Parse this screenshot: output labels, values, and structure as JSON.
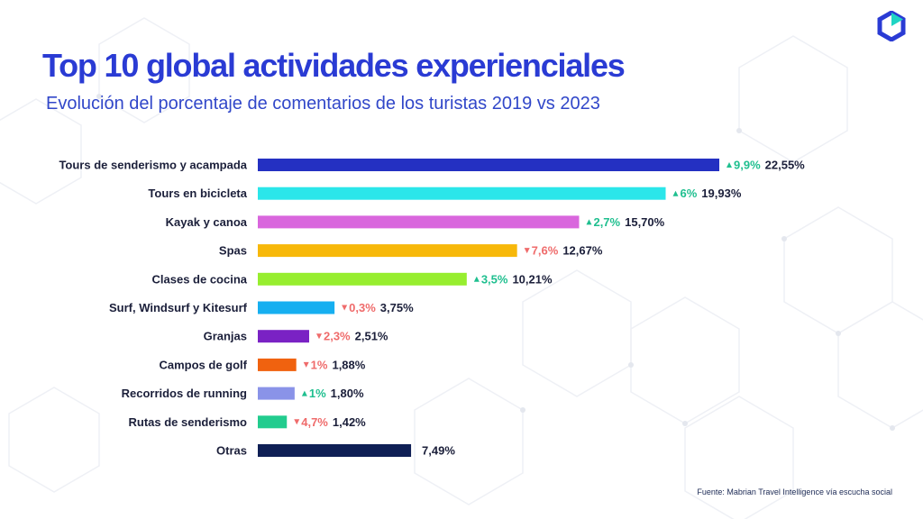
{
  "header": {
    "title": "Top 10 global actividades experienciales",
    "subtitle": "Evolución del porcentaje de comentarios de los turistas 2019 vs 2023"
  },
  "footer": {
    "source": "Fuente:  Mabrian Travel Intelligence  vía escucha social"
  },
  "icons": {
    "logo": "hexagon-logo-icon"
  },
  "colors": {
    "title": "#2a3bd4",
    "up": "#1fbf8f",
    "down": "#ef6b6b",
    "label": "#1b1f3a"
  },
  "chart_data": {
    "type": "bar",
    "orientation": "horizontal",
    "title": "Top 10 global actividades experienciales",
    "subtitle": "Evolución del porcentaje de comentarios de los turistas 2019 vs 2023",
    "xlabel": "",
    "ylabel": "",
    "xlim": [
      0,
      22.55
    ],
    "grid": false,
    "legend": "none",
    "categories": [
      "Tours de senderismo y acampada",
      "Tours en bicicleta",
      "Kayak y canoa",
      "Spas",
      "Clases de cocina",
      "Surf, Windsurf y Kitesurf",
      "Granjas",
      "Campos de golf",
      "Recorridos de running",
      "Rutas de senderismo",
      "Otras"
    ],
    "values": [
      22.55,
      19.93,
      15.7,
      12.67,
      10.21,
      3.75,
      2.51,
      1.88,
      1.8,
      1.42,
      7.49
    ],
    "value_labels": [
      "22,55%",
      "19,93%",
      "15,70%",
      "12,67%",
      "10,21%",
      "3,75%",
      "2,51%",
      "1,88%",
      "1,80%",
      "1,42%",
      "7,49%"
    ],
    "change_labels": [
      "9,9%",
      "6%",
      "2,7%",
      "7,6%",
      "3,5%",
      "0,3%",
      "2,3%",
      "1%",
      "1%",
      "4,7%",
      ""
    ],
    "change_direction": [
      "up",
      "up",
      "up",
      "down",
      "up",
      "down",
      "down",
      "down",
      "up",
      "down",
      ""
    ],
    "bar_colors": [
      "#2430c2",
      "#2be6ea",
      "#d966dd",
      "#f7b80a",
      "#97ee2f",
      "#16aff0",
      "#7a22c4",
      "#f0620f",
      "#8a93e8",
      "#22cc8e",
      "#0f1f55"
    ]
  }
}
